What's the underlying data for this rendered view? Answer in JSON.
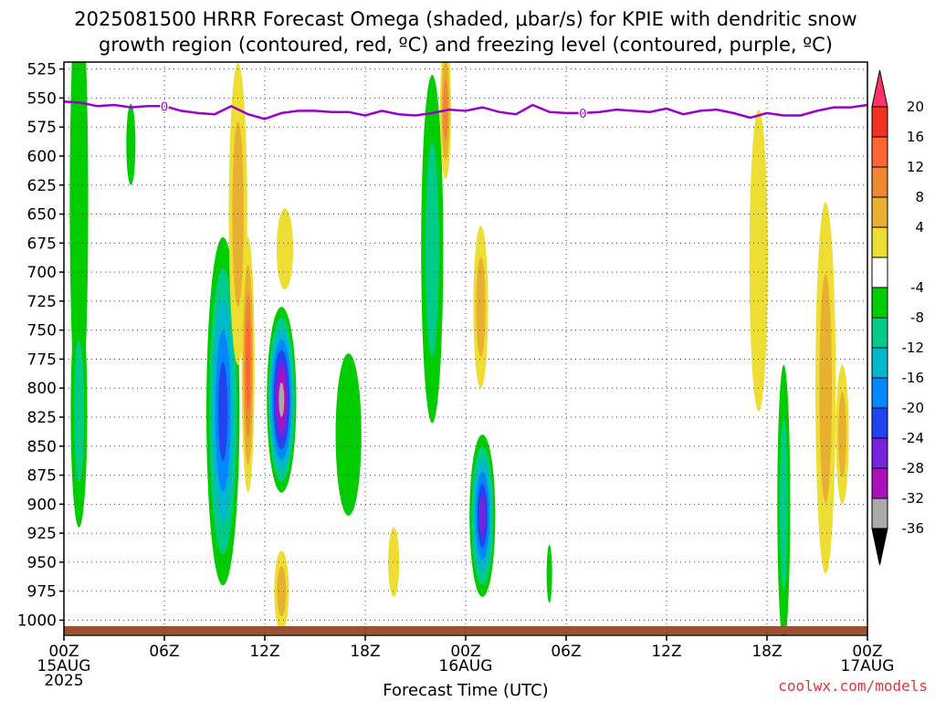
{
  "header": {
    "title_line1": "2025081500 HRRR Forecast Omega (shaded, μbar/s) for KPIE with dendritic snow",
    "title_line2": "growth region (contoured, red, ºC) and freezing level (contoured, purple, ºC)"
  },
  "footer": {
    "xlabel": "Forecast Time (UTC)",
    "credit": "coolwx.com/models"
  },
  "colors": {
    "freezing_level": "#9900cc",
    "ground": "#9b5030",
    "grid": "#444444"
  },
  "chart_data": {
    "type": "heatmap",
    "title": "2025081500 HRRR Forecast Omega (shaded, μbar/s) for KPIE with dendritic snow growth region (contoured, red, ºC) and freezing level (contoured, purple, ºC)",
    "xlabel": "Forecast Time (UTC)",
    "ylabel": "",
    "x_unit": "forecast hour",
    "xlim": [
      0,
      48
    ],
    "ylim": [
      1013,
      519
    ],
    "y_reversed": true,
    "grid": true,
    "y_ticks": [
      525,
      550,
      575,
      600,
      625,
      650,
      675,
      700,
      725,
      750,
      775,
      800,
      825,
      850,
      875,
      900,
      925,
      950,
      975,
      1000
    ],
    "x_ticks": [
      {
        "hour": 0,
        "lines": [
          "00Z",
          "15AUG",
          "2025"
        ]
      },
      {
        "hour": 6,
        "lines": [
          "06Z"
        ]
      },
      {
        "hour": 12,
        "lines": [
          "12Z"
        ]
      },
      {
        "hour": 18,
        "lines": [
          "18Z"
        ]
      },
      {
        "hour": 24,
        "lines": [
          "00Z",
          "16AUG"
        ]
      },
      {
        "hour": 30,
        "lines": [
          "06Z"
        ]
      },
      {
        "hour": 36,
        "lines": [
          "12Z"
        ]
      },
      {
        "hour": 42,
        "lines": [
          "18Z"
        ]
      },
      {
        "hour": 48,
        "lines": [
          "00Z",
          "17AUG"
        ]
      }
    ],
    "colorbar": {
      "labels": [
        "20",
        "16",
        "12",
        "8",
        "4",
        "-4",
        "-8",
        "-12",
        "-16",
        "-20",
        "-24",
        "-28",
        "-32",
        "-36"
      ],
      "colors": [
        "#ff3366",
        "#ee3322",
        "#ff6633",
        "#ee8833",
        "#e8b030",
        "#eedd33",
        "#ffffff",
        "#00cc00",
        "#00cc88",
        "#00b8cc",
        "#0088ff",
        "#2244ee",
        "#7722dd",
        "#aa11bb",
        "#aaaaaa",
        "#000000"
      ]
    },
    "freezing_level_label": "0",
    "freezing_level": {
      "hours": [
        0,
        1,
        2,
        3,
        4,
        5,
        6,
        7,
        8,
        9,
        10,
        11,
        12,
        13,
        14,
        15,
        16,
        17,
        18,
        19,
        20,
        21,
        22,
        23,
        24,
        25,
        26,
        27,
        28,
        29,
        30,
        31,
        32,
        33,
        34,
        35,
        36,
        37,
        38,
        39,
        40,
        41,
        42,
        43,
        44,
        45,
        46,
        47,
        48
      ],
      "pressure": [
        553,
        554,
        557,
        556,
        558,
        557,
        557,
        561,
        563,
        564,
        557,
        564,
        568,
        563,
        561,
        561,
        562,
        562,
        565,
        561,
        564,
        565,
        563,
        560,
        561,
        558,
        562,
        564,
        556,
        562,
        563,
        563,
        562,
        560,
        561,
        562,
        559,
        564,
        561,
        560,
        563,
        567,
        563,
        565,
        565,
        561,
        558,
        558,
        556
      ]
    },
    "omega_features": [
      {
        "hour": 0.9,
        "p": 640,
        "width_h": 0.5,
        "depth_hpa": 190,
        "value": -7
      },
      {
        "hour": 0.9,
        "p": 820,
        "width_h": 0.45,
        "depth_hpa": 100,
        "value": -8
      },
      {
        "hour": 4.0,
        "p": 590,
        "width_h": 0.25,
        "depth_hpa": 35,
        "value": -6
      },
      {
        "hour": 9.5,
        "p": 820,
        "width_h": 0.9,
        "depth_hpa": 150,
        "value": -21
      },
      {
        "hour": 10.4,
        "p": 650,
        "width_h": 0.5,
        "depth_hpa": 130,
        "value": 11
      },
      {
        "hour": 11.0,
        "p": 780,
        "width_h": 0.35,
        "depth_hpa": 110,
        "value": 19
      },
      {
        "hour": 13.0,
        "p": 810,
        "width_h": 0.8,
        "depth_hpa": 80,
        "value": -34
      },
      {
        "hour": 13.2,
        "p": 680,
        "width_h": 0.45,
        "depth_hpa": 35,
        "value": 6
      },
      {
        "hour": 13.0,
        "p": 975,
        "width_h": 0.4,
        "depth_hpa": 35,
        "value": 10
      },
      {
        "hour": 17.0,
        "p": 840,
        "width_h": 0.7,
        "depth_hpa": 70,
        "value": -7
      },
      {
        "hour": 19.7,
        "p": 950,
        "width_h": 0.3,
        "depth_hpa": 30,
        "value": 7
      },
      {
        "hour": 22.0,
        "p": 680,
        "width_h": 0.6,
        "depth_hpa": 150,
        "value": -9
      },
      {
        "hour": 22.8,
        "p": 560,
        "width_h": 0.3,
        "depth_hpa": 60,
        "value": 14
      },
      {
        "hour": 25.0,
        "p": 910,
        "width_h": 0.7,
        "depth_hpa": 70,
        "value": -27
      },
      {
        "hour": 24.9,
        "p": 730,
        "width_h": 0.4,
        "depth_hpa": 70,
        "value": 9
      },
      {
        "hour": 29.0,
        "p": 960,
        "width_h": 0.15,
        "depth_hpa": 25,
        "value": -6
      },
      {
        "hour": 41.5,
        "p": 690,
        "width_h": 0.5,
        "depth_hpa": 130,
        "value": 5
      },
      {
        "hour": 43.0,
        "p": 900,
        "width_h": 0.35,
        "depth_hpa": 120,
        "value": -10
      },
      {
        "hour": 45.5,
        "p": 800,
        "width_h": 0.55,
        "depth_hpa": 160,
        "value": 8
      },
      {
        "hour": 46.5,
        "p": 840,
        "width_h": 0.35,
        "depth_hpa": 60,
        "value": 10
      }
    ],
    "annotations": []
  }
}
